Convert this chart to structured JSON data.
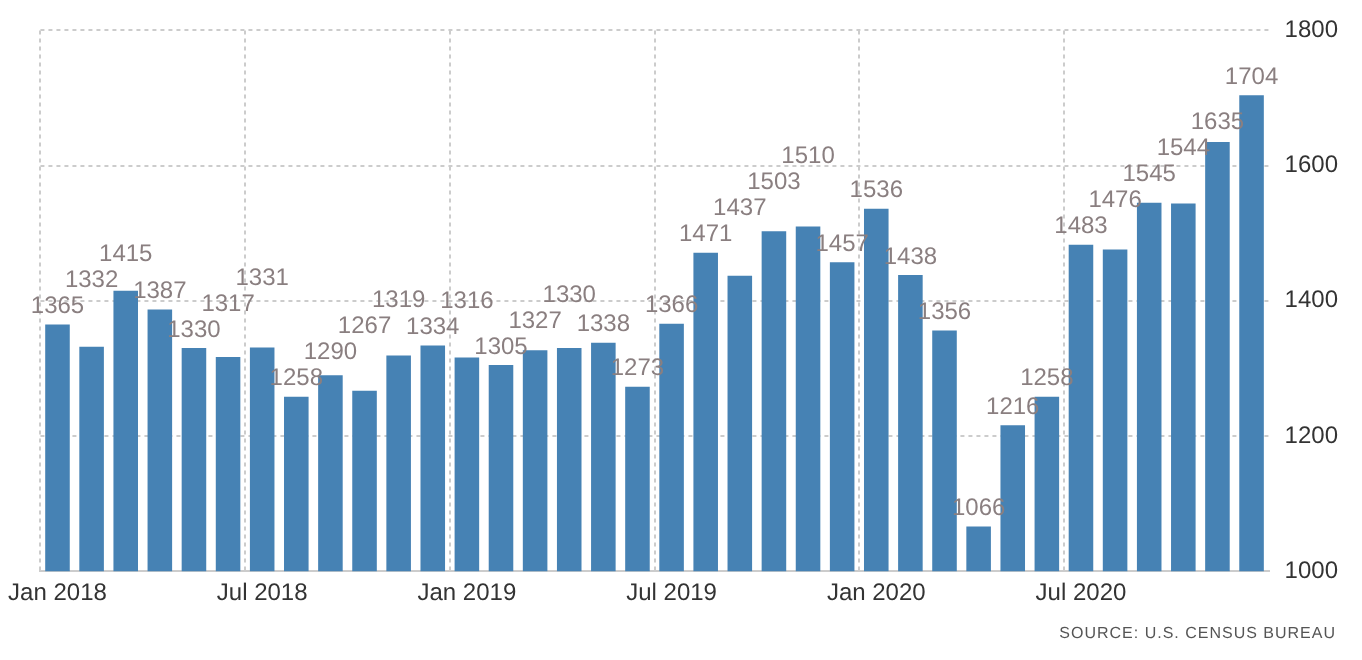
{
  "chart_data": {
    "type": "bar",
    "categories": [
      "Jan 2018",
      null,
      null,
      null,
      null,
      null,
      "Jul 2018",
      null,
      null,
      null,
      null,
      null,
      "Jan 2019",
      null,
      null,
      null,
      null,
      null,
      "Jul 2019",
      null,
      null,
      null,
      null,
      null,
      "Jan 2020",
      null,
      null,
      null,
      null,
      null,
      "Jul 2020",
      null,
      null,
      null,
      null,
      null
    ],
    "values": [
      1365,
      1332,
      1415,
      1387,
      1330,
      1317,
      1331,
      1258,
      1290,
      1267,
      1319,
      1334,
      1316,
      1305,
      1327,
      1330,
      1338,
      1273,
      1366,
      1471,
      1437,
      1503,
      1510,
      1457,
      1536,
      1438,
      1356,
      1066,
      1216,
      1258,
      1483,
      1476,
      1545,
      1544,
      1635,
      1704
    ],
    "color": "#4682b4",
    "ylim": [
      1000,
      1800
    ],
    "yticks": [
      1000,
      1200,
      1400,
      1600,
      1800
    ],
    "grid": true,
    "data_labels": true,
    "annotations": [
      "SOURCE: U.S. CENSUS BUREAU"
    ]
  }
}
